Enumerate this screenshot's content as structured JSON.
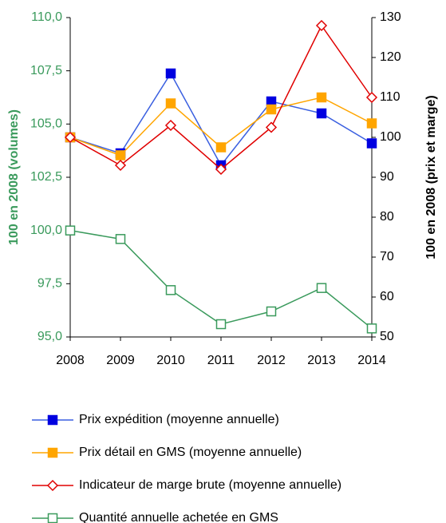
{
  "chart_data": {
    "type": "line",
    "y_label": "100 en 2008 (volumes)",
    "y2_label": "100 en 2008 (prix et marge)",
    "categories": [
      "2008",
      "2009",
      "2010",
      "2011",
      "2012",
      "2013",
      "2014"
    ],
    "ylim": [
      95,
      110
    ],
    "yticks": [
      {
        "value": 95,
        "label": "95,0"
      },
      {
        "value": 97.5,
        "label": "97,5"
      },
      {
        "value": 100,
        "label": "100,0"
      },
      {
        "value": 102.5,
        "label": "102,5"
      },
      {
        "value": 105,
        "label": "105,0"
      },
      {
        "value": 107.5,
        "label": "107,5"
      },
      {
        "value": 110,
        "label": "110,0"
      }
    ],
    "y2lim": [
      50,
      130
    ],
    "y2ticks": [
      50,
      60,
      70,
      80,
      90,
      100,
      110,
      120,
      130
    ],
    "series": [
      {
        "name": "Prix expédition (moyenne annuelle)",
        "color": "#3a5fe0",
        "marker": "square-filled",
        "marker_color": "#0000e0",
        "axis": "y2",
        "values": [
          100,
          96,
          116,
          93,
          109,
          106,
          98.5
        ]
      },
      {
        "name": "Prix détail en GMS (moyenne annuelle)",
        "color": "#ffa500",
        "marker": "square-filled",
        "marker_color": "#ffa500",
        "axis": "y2",
        "values": [
          100,
          95.5,
          108.5,
          97.5,
          107,
          110,
          103.5
        ]
      },
      {
        "name": "Indicateur de marge brute (moyenne annuelle)",
        "color": "#e00000",
        "marker": "diamond-open",
        "marker_color": "#e00000",
        "axis": "y2",
        "values": [
          100,
          93,
          103,
          92,
          102.5,
          128,
          110
        ]
      },
      {
        "name": "Quantité annuelle achetée en GMS",
        "color": "#3a9a5c",
        "marker": "square-open",
        "marker_color": "#3a9a5c",
        "axis": "y",
        "values": [
          100.0,
          99.6,
          97.2,
          95.6,
          96.2,
          97.3,
          95.4
        ]
      }
    ]
  }
}
